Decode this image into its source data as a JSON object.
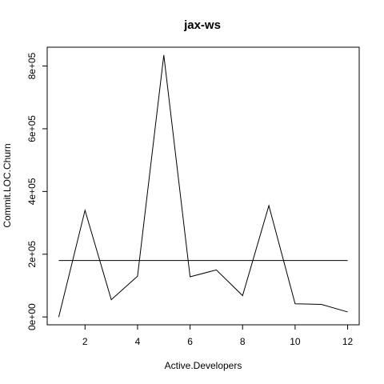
{
  "chart_data": {
    "type": "line",
    "title": "jax-ws",
    "xlabel": "Active.Developers",
    "ylabel": "Commit.LOC.Churn",
    "x": [
      1,
      2,
      3,
      4,
      5,
      6,
      7,
      8,
      9,
      10,
      11,
      12
    ],
    "series": [
      {
        "values": [
          0,
          340000,
          55000,
          130000,
          835000,
          128000,
          150000,
          68000,
          355000,
          42000,
          40000,
          16000
        ]
      }
    ],
    "reference_line": {
      "y": 180000
    },
    "xlim": [
      0.56,
      12.44
    ],
    "ylim": [
      -25000,
      860000
    ],
    "x_ticks": [
      2,
      4,
      6,
      8,
      10,
      12
    ],
    "x_tick_labels": [
      "2",
      "4",
      "6",
      "8",
      "10",
      "12"
    ],
    "y_ticks": [
      0,
      200000,
      400000,
      600000,
      800000
    ],
    "y_tick_labels": [
      "0e+00",
      "2e+05",
      "4e+05",
      "6e+05",
      "8e+05"
    ],
    "grid": false,
    "colors": {
      "line": "#000000",
      "axis": "#000000",
      "background": "#ffffff"
    }
  }
}
